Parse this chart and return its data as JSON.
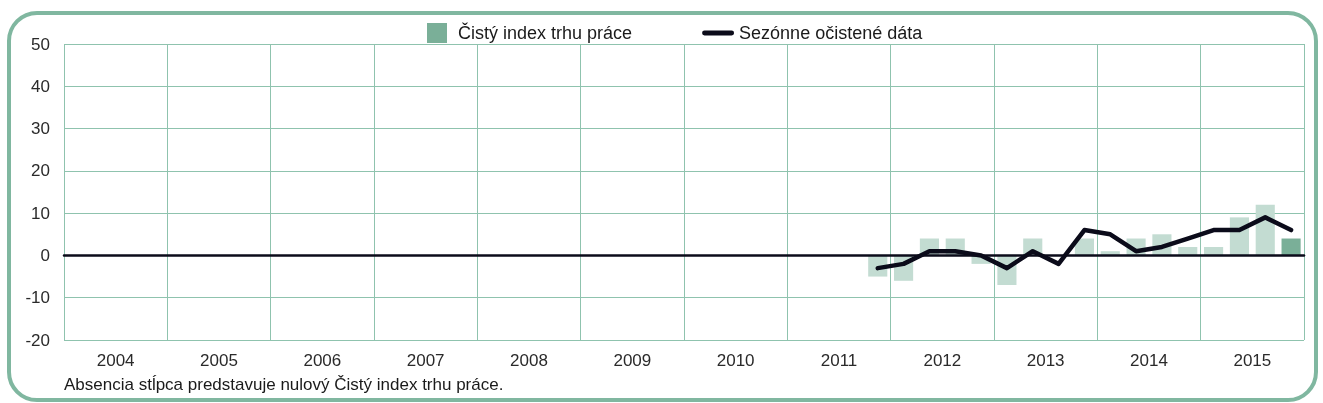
{
  "chart_data": {
    "type": "bar",
    "x": [
      2011.875,
      2012.125,
      2012.375,
      2012.625,
      2012.875,
      2013.125,
      2013.375,
      2013.625,
      2013.875,
      2014.125,
      2014.375,
      2014.625,
      2014.875,
      2015.125,
      2015.375,
      2015.625,
      2015.875
    ],
    "series": [
      {
        "name": "Čistý index trhu práce",
        "color": "#7aaf98",
        "colors": [
          "#c3dcd2",
          "#c3dcd2",
          "#c3dcd2",
          "#c3dcd2",
          "#c3dcd2",
          "#c3dcd2",
          "#c3dcd2",
          "#c3dcd2",
          "#c3dcd2",
          "#c3dcd2",
          "#c3dcd2",
          "#c3dcd2",
          "#c3dcd2",
          "#c3dcd2",
          "#c3dcd2",
          "#c3dcd2",
          "#7aaf98"
        ],
        "values": [
          -5,
          -6,
          4,
          4,
          -2,
          -7,
          4,
          0,
          4,
          1,
          4,
          5,
          2,
          2,
          9,
          12,
          4
        ]
      },
      {
        "name": "Sezónne očistené dáta",
        "type": "line",
        "color": "#0b0b1a",
        "values": [
          -3,
          -2,
          1,
          1,
          0,
          -3,
          1,
          -2,
          6,
          5,
          1,
          2,
          4,
          6,
          6,
          9,
          6
        ]
      }
    ],
    "xlim": [
      2004,
      2016
    ],
    "xticks": [
      {
        "value": 2004,
        "label": null
      },
      {
        "value": 2004.5,
        "label": "2004"
      },
      {
        "value": 2005,
        "label": null
      },
      {
        "value": 2005.5,
        "label": "2005"
      },
      {
        "value": 2006,
        "label": null
      },
      {
        "value": 2006.5,
        "label": "2006"
      },
      {
        "value": 2007,
        "label": null
      },
      {
        "value": 2007.5,
        "label": "2007"
      },
      {
        "value": 2008,
        "label": null
      },
      {
        "value": 2008.5,
        "label": "2008"
      },
      {
        "value": 2009,
        "label": null
      },
      {
        "value": 2009.5,
        "label": "2009"
      },
      {
        "value": 2010,
        "label": null
      },
      {
        "value": 2010.5,
        "label": "2010"
      },
      {
        "value": 2011,
        "label": null
      },
      {
        "value": 2011.5,
        "label": "2011"
      },
      {
        "value": 2012,
        "label": null
      },
      {
        "value": 2012.5,
        "label": "2012"
      },
      {
        "value": 2013,
        "label": null
      },
      {
        "value": 2013.5,
        "label": "2013"
      },
      {
        "value": 2014,
        "label": null
      },
      {
        "value": 2014.5,
        "label": "2014"
      },
      {
        "value": 2015,
        "label": null
      },
      {
        "value": 2015.5,
        "label": "2015"
      },
      {
        "value": 2016,
        "label": null
      }
    ],
    "ylim": [
      -20,
      50
    ],
    "yticks": [
      -20,
      -10,
      0,
      10,
      20,
      30,
      40,
      50
    ],
    "grid": true,
    "legend": "top",
    "marker": "none",
    "annotations": [
      "Absencia stĺpca predstavuje nulový Čistý index trhu práce."
    ]
  }
}
